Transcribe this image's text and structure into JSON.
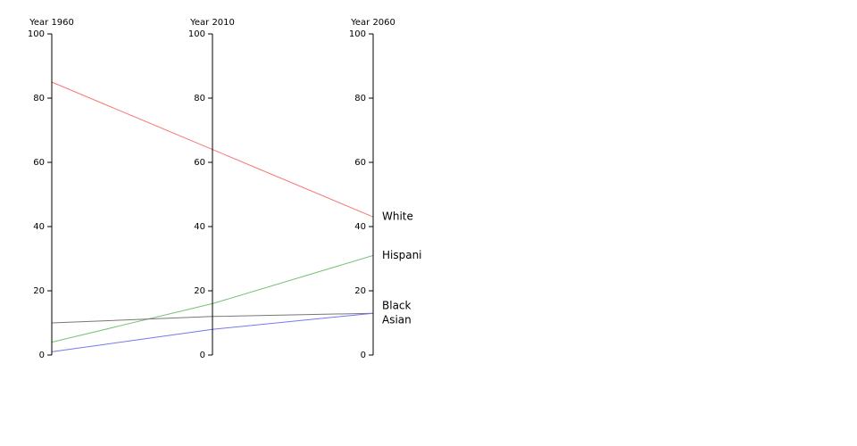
{
  "chart_data": {
    "type": "parallel",
    "categories": [
      "Year 1960",
      "Year 2010",
      "Year 2060"
    ],
    "ylim": [
      0,
      100
    ],
    "yticks": [
      0,
      20,
      40,
      60,
      80,
      100
    ],
    "series": [
      {
        "name": "White",
        "color": "#f77777",
        "values": [
          85,
          64,
          43
        ]
      },
      {
        "name": "Hispani",
        "color": "#77c077",
        "values": [
          4,
          16,
          31
        ]
      },
      {
        "name": "Black",
        "color": "#777777",
        "values": [
          10,
          12,
          13
        ]
      },
      {
        "name": "Asian",
        "color": "#7777ee",
        "values": [
          1,
          8,
          13
        ]
      }
    ]
  }
}
